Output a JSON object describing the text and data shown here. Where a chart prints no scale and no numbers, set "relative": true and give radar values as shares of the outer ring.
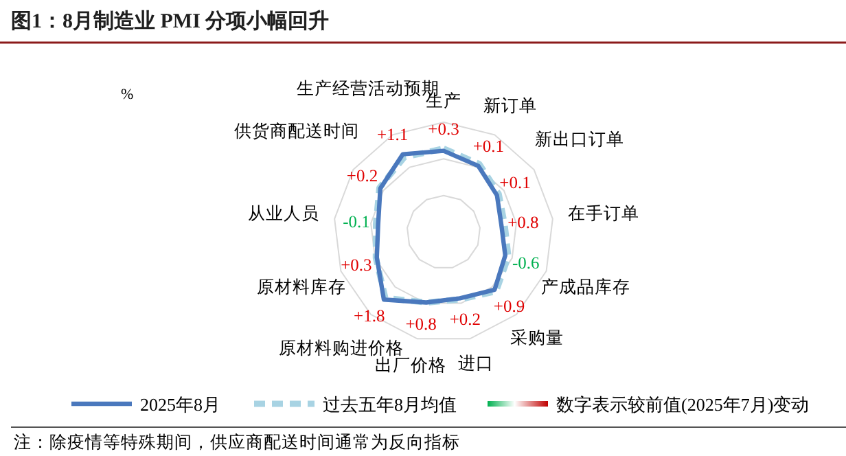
{
  "chart_data": {
    "type": "radar",
    "title": "图1：8月制造业 PMI 分项小幅回升",
    "ylabel": "%",
    "relative": true,
    "legend": "bottom",
    "categories": [
      "生产",
      "新订单",
      "新出口订单",
      "在手订单",
      "产成品库存",
      "采购量",
      "进口",
      "出厂价格",
      "原材料购进价格",
      "原材料库存",
      "从业人员",
      "供货商配送时间",
      "生产经营活动预期"
    ],
    "series": [
      {
        "name": "2025年8月",
        "color": "#4a78bd",
        "line_style": "solid",
        "values": [
          0.74,
          0.68,
          0.59,
          0.53,
          0.6,
          0.7,
          0.62,
          0.66,
          0.82,
          0.65,
          0.6,
          0.7,
          0.8
        ]
      },
      {
        "name": "过去五年8月均值",
        "color": "#a8d3e3",
        "line_style": "dashed",
        "values": [
          0.76,
          0.7,
          0.61,
          0.56,
          0.63,
          0.72,
          0.63,
          0.66,
          0.8,
          0.66,
          0.62,
          0.71,
          0.77
        ]
      }
    ],
    "annotations": [
      {
        "text": "+0.3",
        "x": "生产"
      },
      {
        "text": "+0.1",
        "x": "新订单"
      },
      {
        "text": "+0.1",
        "x": "新出口订单"
      },
      {
        "text": "+0.8",
        "x": "在手订单"
      },
      {
        "text": "-0.6",
        "x": "产成品库存"
      },
      {
        "text": "+0.9",
        "x": "采购量"
      },
      {
        "text": "+0.2",
        "x": "进口"
      },
      {
        "text": "+0.8",
        "x": "出厂价格"
      },
      {
        "text": "+1.8",
        "x": "原材料购进价格"
      },
      {
        "text": "+0.3",
        "x": "原材料库存"
      },
      {
        "text": "-0.1",
        "x": "从业人员"
      },
      {
        "text": "+0.2",
        "x": "供货商配送时间"
      },
      {
        "text": "+1.1",
        "x": "生产经营活动预期"
      },
      "数字表示较前值(2025年7月)变动",
      "注：除疫情等特殊期间，供应商配送时间通常为反向指标"
    ]
  }
}
